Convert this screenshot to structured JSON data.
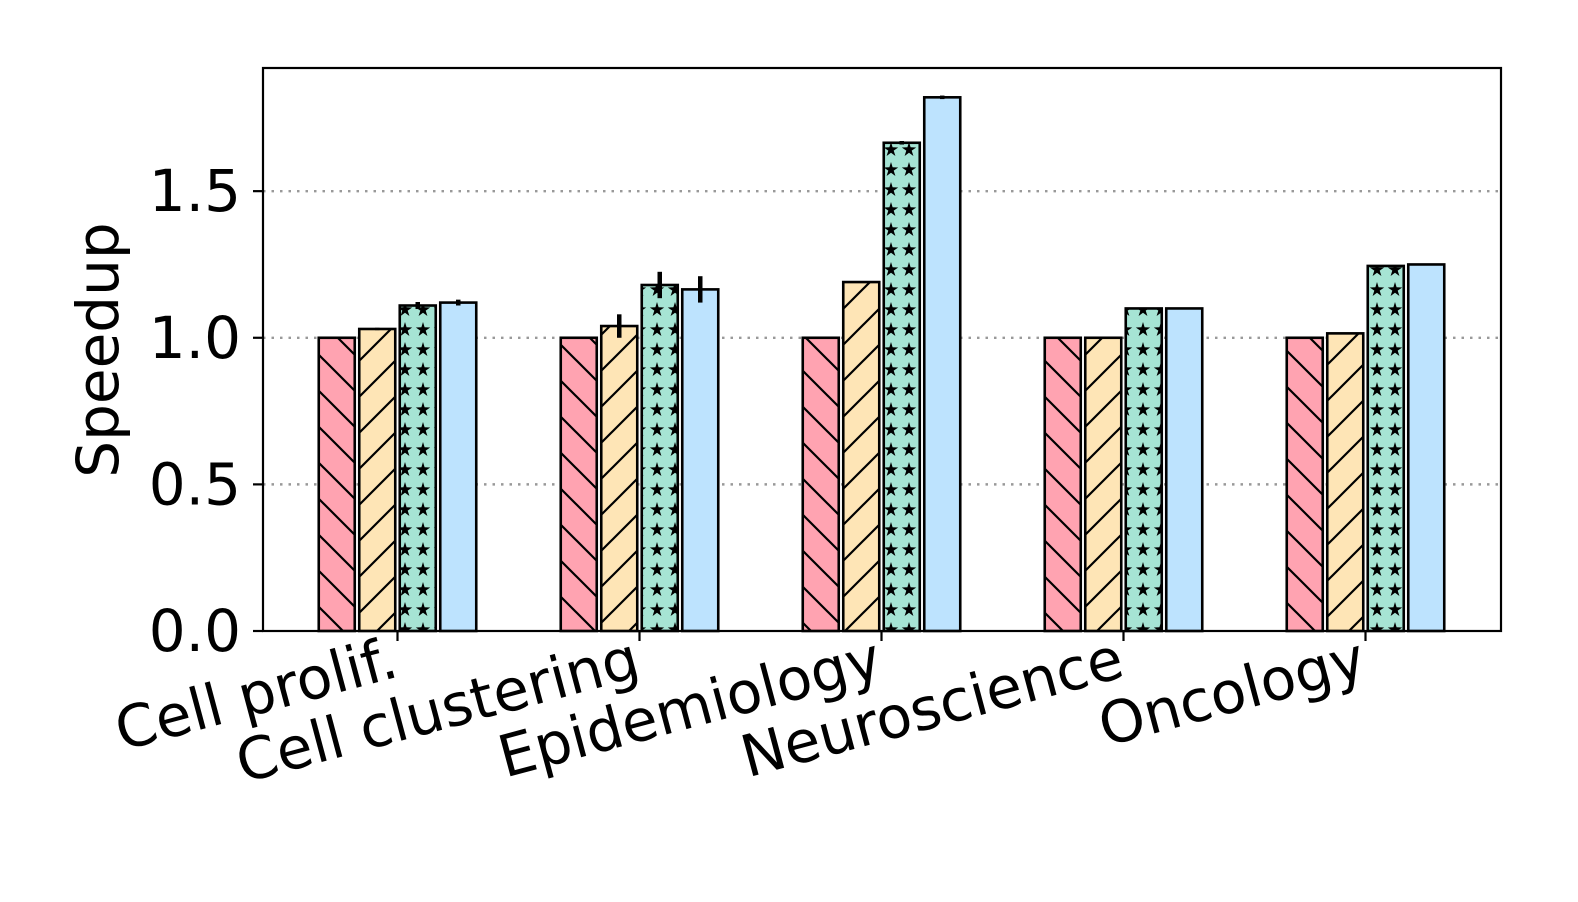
{
  "chart_data": {
    "type": "bar",
    "title": "",
    "xlabel": "",
    "ylabel": "Speedup",
    "ylim": [
      0,
      1.92
    ],
    "yticks": [
      "0.0",
      "0.5",
      "1.0",
      "1.5"
    ],
    "grid": "horizontal dotted",
    "categories": [
      "Cell prolif.",
      "Cell clustering",
      "Epidemiology",
      "Neuroscience",
      "Oncology"
    ],
    "series": [
      {
        "color": "#ffa3b1",
        "pattern": "backslash-hatch",
        "values": [
          1.0,
          1.0,
          1.0,
          1.0,
          1.0
        ],
        "errors": [
          0,
          0,
          0,
          0,
          0
        ]
      },
      {
        "color": "#fee5b6",
        "pattern": "slash-hatch",
        "values": [
          1.03,
          1.04,
          1.19,
          1.0,
          1.015
        ],
        "errors": [
          0.004,
          0.04,
          0,
          0,
          0
        ]
      },
      {
        "color": "#a6e4d4",
        "pattern": "stars",
        "values": [
          1.11,
          1.18,
          1.665,
          1.1,
          1.245
        ],
        "errors": [
          0.012,
          0.045,
          0.006,
          0,
          0
        ]
      },
      {
        "color": "#bde3fe",
        "pattern": "solid",
        "values": [
          1.12,
          1.165,
          1.82,
          1.1,
          1.25
        ],
        "errors": [
          0.01,
          0.045,
          0.006,
          0,
          0
        ]
      }
    ]
  }
}
